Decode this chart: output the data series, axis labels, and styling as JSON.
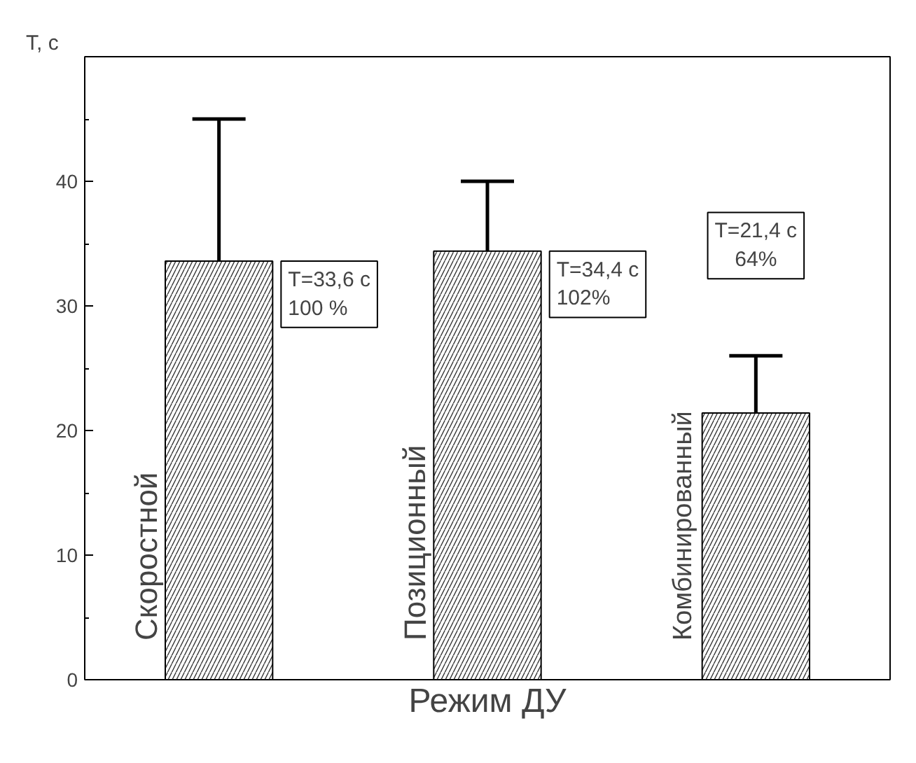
{
  "chart_data": {
    "type": "bar",
    "xlabel": "Режим ДУ",
    "ylabel": "T, с",
    "categories": [
      "Скоростной",
      "Позиционный",
      "Комбинированный"
    ],
    "values": [
      33.6,
      34.4,
      21.4
    ],
    "color": "#ffffff",
    "errors": [
      [
        28,
        45
      ],
      [
        30,
        40
      ],
      [
        18,
        26
      ]
    ],
    "ylim": [
      0,
      50
    ],
    "yticks": [
      0,
      {
        "value": 5,
        "label": null
      },
      10,
      {
        "value": 15,
        "label": null
      },
      20,
      {
        "value": 25,
        "label": null
      },
      30,
      {
        "value": 35,
        "label": null
      },
      40,
      {
        "value": 45,
        "label": null
      }
    ],
    "tick_labels": "y",
    "grid": false,
    "annotations": [
      "T=33,6 с\n100 %",
      "T=34,4 с\n102%",
      "T=21,4 с\n64%"
    ]
  }
}
